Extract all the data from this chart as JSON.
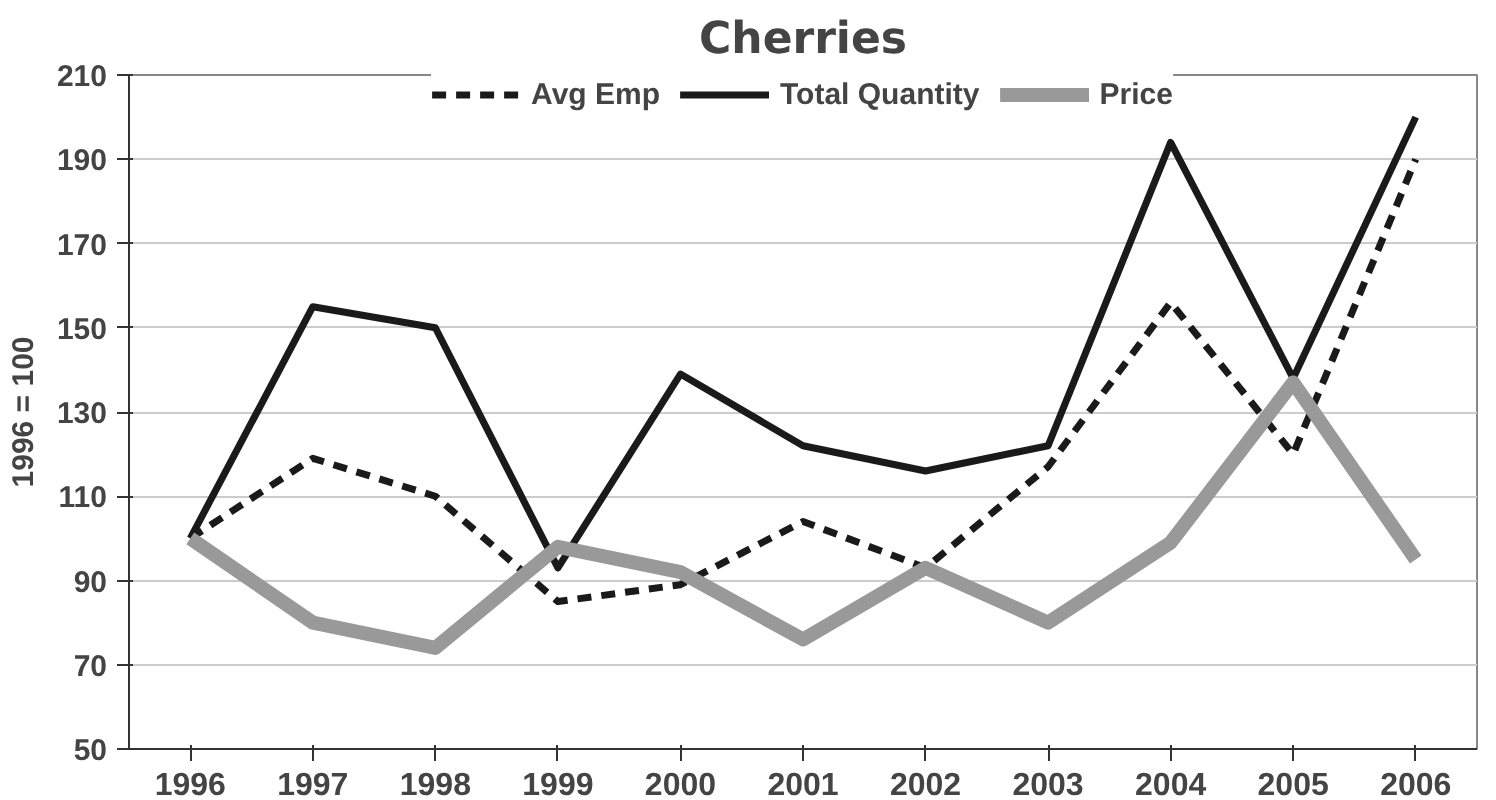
{
  "chart_data": {
    "type": "line",
    "title": "Cherries",
    "ylabel": "1996 = 100",
    "categories": [
      "1996",
      "1997",
      "1998",
      "1999",
      "2000",
      "2001",
      "2002",
      "2003",
      "2004",
      "2005",
      "2006"
    ],
    "ylim": [
      50,
      210
    ],
    "yticks": [
      50,
      70,
      90,
      110,
      130,
      150,
      170,
      190,
      210
    ],
    "grid": "y",
    "legend": "top",
    "series": [
      {
        "name": "Avg Emp",
        "color": "#1a1a1a",
        "line_style": "dashed",
        "values": [
          100,
          119,
          110,
          85,
          89,
          104,
          93,
          117,
          156,
          120,
          190
        ]
      },
      {
        "name": "Total Quantity",
        "color": "#1a1a1a",
        "line_style": "solid",
        "values": [
          100,
          155,
          150,
          93,
          139,
          122,
          116,
          122,
          194,
          138,
          200
        ]
      },
      {
        "name": "Price",
        "color": "#999999",
        "line_style": "solid",
        "values": [
          100,
          80,
          74,
          98,
          92,
          76,
          93,
          80,
          99,
          137,
          95
        ]
      }
    ]
  }
}
